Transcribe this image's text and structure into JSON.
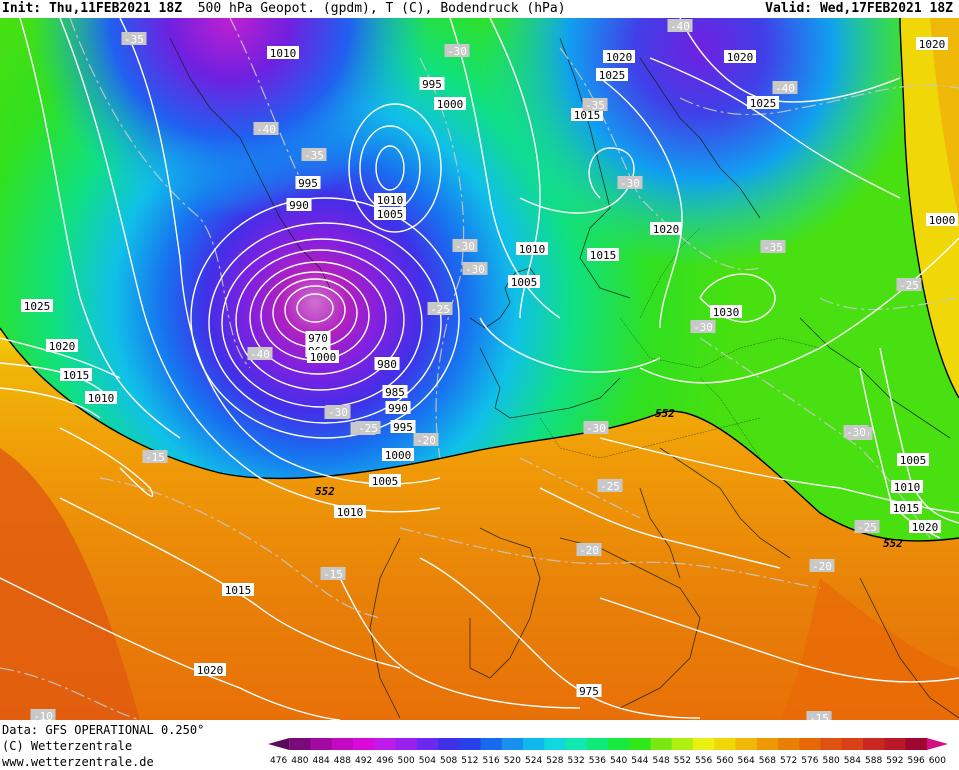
{
  "header": {
    "init_label": "Init:",
    "init_value": "Thu,11FEB2021 18Z",
    "description": "500 hPa Geopot. (gpdm), T (C), Bodendruck (hPa)",
    "valid_label": "Valid:",
    "valid_value": "Wed,17FEB2021 18Z"
  },
  "footer": {
    "data_line": "Data: GFS OPERATIONAL 0.250°",
    "copyright_line": "(C) Wetterzentrale",
    "url_line": "www.wetterzentrale.de"
  },
  "colorbar": {
    "values": [
      "476",
      "480",
      "484",
      "488",
      "492",
      "496",
      "500",
      "504",
      "508",
      "512",
      "516",
      "520",
      "524",
      "528",
      "532",
      "536",
      "540",
      "544",
      "548",
      "552",
      "556",
      "560",
      "564",
      "568",
      "572",
      "576",
      "580",
      "584",
      "588",
      "592",
      "596",
      "600"
    ],
    "colors": [
      "#5a0a5a",
      "#7a0a7a",
      "#a00aa0",
      "#c20ac2",
      "#d80ad8",
      "#c01aea",
      "#9a20f0",
      "#6a28f0",
      "#4030e8",
      "#2840e8",
      "#1868f0",
      "#1890f0",
      "#10b8f0",
      "#10d8e0",
      "#10e8b0",
      "#10e878",
      "#18e840",
      "#30e818",
      "#78e810",
      "#b0f010",
      "#e8f010",
      "#f0d808",
      "#f0b808",
      "#f09808",
      "#e88008",
      "#e86808",
      "#e05010",
      "#d84018",
      "#c82820",
      "#b81828",
      "#a00830",
      "#d01080"
    ]
  },
  "map": {
    "pressure_labels": [
      "1010",
      "995",
      "1000",
      "1020",
      "1020",
      "1025",
      "1015",
      "1020",
      "1010",
      "1005",
      "995",
      "990",
      "1010",
      "1015",
      "1005",
      "1030",
      "1000",
      "1025",
      "1020",
      "1015",
      "1010",
      "980",
      "985",
      "990",
      "995",
      "1000",
      "1005",
      "1010",
      "1015",
      "1020",
      "1020",
      "1005",
      "1010",
      "1015",
      "1020",
      "975",
      "970",
      "960",
      "1000",
      "1025"
    ],
    "temperature_labels": [
      "-35",
      "-30",
      "-40",
      "-35",
      "-40",
      "-35",
      "-30",
      "-30",
      "-30",
      "-35",
      "-25",
      "-30",
      "-25",
      "-40",
      "-30",
      "-25",
      "-20",
      "-30",
      "-25",
      "-15",
      "-20",
      "-15",
      "-20",
      "-20",
      "-10",
      "-15",
      "-25",
      "-30",
      "-30",
      "-25",
      "-40"
    ],
    "geopotential_labels": [
      "552",
      "552",
      "552"
    ]
  }
}
